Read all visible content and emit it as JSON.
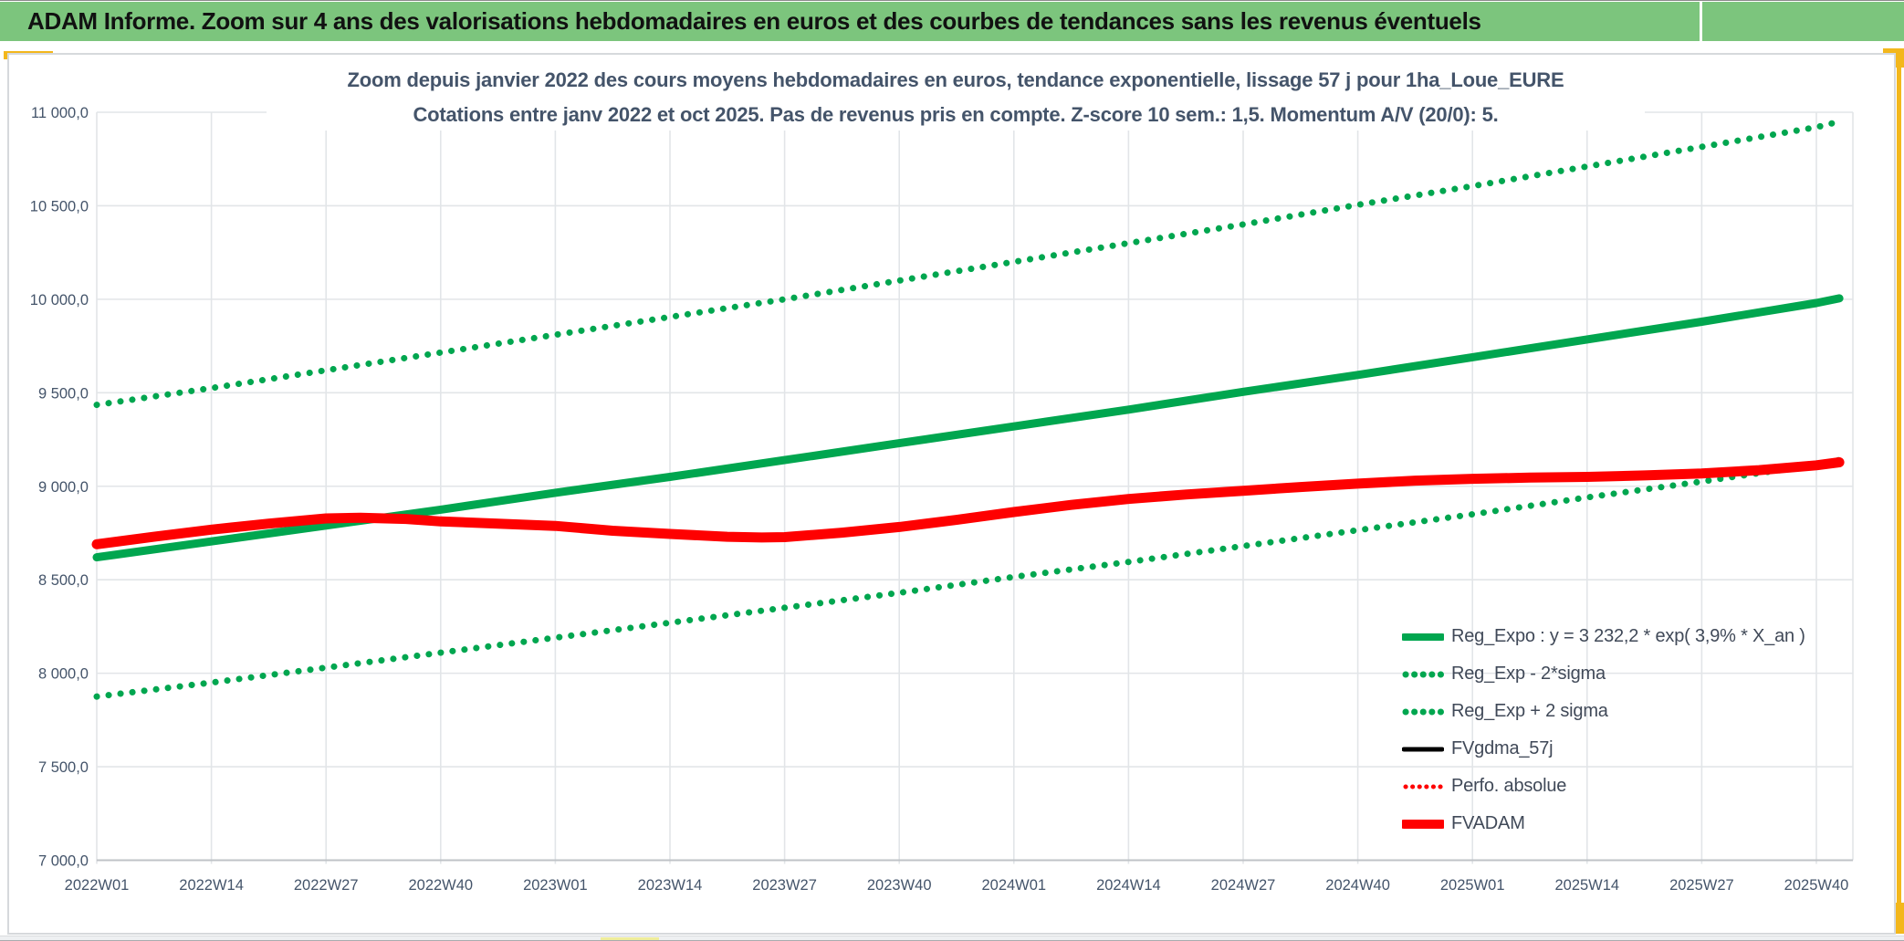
{
  "window": {
    "header_title": "ADAM Informe. Zoom sur 4 ans des valorisations hebdomadaires en euros et des courbes de tendances sans les revenus éventuels"
  },
  "colors": {
    "header_green": "#7cc57d",
    "accent_yellow": "#f3b71c",
    "pale_yellow_thumb": "#efed9b",
    "line_green": "#00a64f",
    "line_red": "#fe0000",
    "line_black": "#000000",
    "text_slate": "#44546a",
    "gridline": "#e2e5e8"
  },
  "chart_data": {
    "type": "line",
    "title_line1": "Zoom depuis janvier 2022 des cours moyens hebdomadaires en euros, tendance exponentielle, lissage 57 j pour 1ha_Loue_EURE",
    "title_line2": "Cotations entre janv 2022 et oct 2025. Pas de revenus pris en compte. Z-score 10 sem.: 1,5. Momentum A/V (20/0): 5.",
    "grid": true,
    "legend_position": "inside-bottom-right",
    "ylim": [
      7000,
      11000
    ],
    "y_ticks": [
      {
        "v": 11000,
        "label": "11 000,0"
      },
      {
        "v": 10500,
        "label": "10 500,0"
      },
      {
        "v": 10000,
        "label": "10 000,0"
      },
      {
        "v": 9500,
        "label": "9 500,0"
      },
      {
        "v": 9000,
        "label": "9 000,0"
      },
      {
        "v": 8500,
        "label": "8 500,0"
      },
      {
        "v": 8000,
        "label": "8 000,0"
      },
      {
        "v": 7500,
        "label": "7 500,0"
      },
      {
        "v": 7000,
        "label": "7 000,0"
      }
    ],
    "x_tick_labels": [
      "2022W01",
      "2022W14",
      "2022W27",
      "2022W40",
      "2023W01",
      "2023W14",
      "2023W27",
      "2023W40",
      "2024W01",
      "2024W14",
      "2024W27",
      "2024W40",
      "2025W01",
      "2025W14",
      "2025W27",
      "2025W40"
    ],
    "series": [
      {
        "key": "reg-expo",
        "name": "Reg_Expo : y = 3 232,2 * exp( 3,9% *  X_an )",
        "color": "#00a64f",
        "style": "solid",
        "width": 9,
        "points": [
          [
            0,
            8620
          ],
          [
            1,
            8705
          ],
          [
            2,
            8790
          ],
          [
            3,
            8875
          ],
          [
            4,
            8965
          ],
          [
            5,
            9050
          ],
          [
            6,
            9140
          ],
          [
            7,
            9230
          ],
          [
            8,
            9320
          ],
          [
            9,
            9410
          ],
          [
            10,
            9505
          ],
          [
            11,
            9595
          ],
          [
            12,
            9690
          ],
          [
            13,
            9785
          ],
          [
            14,
            9880
          ],
          [
            15,
            9980
          ],
          [
            15.2,
            10005
          ]
        ]
      },
      {
        "key": "reg-exp-minus-2sigma",
        "name": "Reg_Exp - 2*sigma",
        "color": "#00a64f",
        "style": "dotted",
        "width": 7,
        "points": [
          [
            0,
            7875
          ],
          [
            1,
            7950
          ],
          [
            2,
            8030
          ],
          [
            3,
            8110
          ],
          [
            4,
            8190
          ],
          [
            5,
            8270
          ],
          [
            6,
            8350
          ],
          [
            7,
            8430
          ],
          [
            8,
            8515
          ],
          [
            9,
            8595
          ],
          [
            10,
            8680
          ],
          [
            11,
            8765
          ],
          [
            12,
            8850
          ],
          [
            13,
            8940
          ],
          [
            14,
            9025
          ],
          [
            15,
            9115
          ],
          [
            15.2,
            9140
          ]
        ]
      },
      {
        "key": "reg-exp-plus-2sigma",
        "name": "Reg_Exp + 2 sigma",
        "color": "#00a64f",
        "style": "dotted",
        "width": 7,
        "points": [
          [
            0,
            9435
          ],
          [
            1,
            9525
          ],
          [
            2,
            9620
          ],
          [
            3,
            9715
          ],
          [
            4,
            9810
          ],
          [
            5,
            9905
          ],
          [
            6,
            10000
          ],
          [
            7,
            10100
          ],
          [
            8,
            10200
          ],
          [
            9,
            10300
          ],
          [
            10,
            10400
          ],
          [
            11,
            10505
          ],
          [
            12,
            10605
          ],
          [
            13,
            10710
          ],
          [
            14,
            10815
          ],
          [
            15,
            10920
          ],
          [
            15.2,
            10950
          ]
        ]
      },
      {
        "key": "fvgdma-57j",
        "name": "FVgdma_57j",
        "color": "#000000",
        "style": "solid",
        "width": 4.5,
        "points": [
          [
            0,
            8702
          ],
          [
            1,
            8762
          ],
          [
            2,
            8820
          ],
          [
            2.5,
            8828
          ],
          [
            3,
            8810
          ],
          [
            4,
            8784
          ],
          [
            5,
            8750
          ],
          [
            5.5,
            8740
          ],
          [
            6,
            8737
          ],
          [
            6.5,
            8758
          ],
          [
            7,
            8790
          ],
          [
            7.5,
            8826
          ],
          [
            8,
            8866
          ],
          [
            9,
            8934
          ],
          [
            10,
            8974
          ],
          [
            11,
            9010
          ],
          [
            12,
            9036
          ],
          [
            13,
            9048
          ],
          [
            14,
            9065
          ],
          [
            15,
            9106
          ],
          [
            15.2,
            9120
          ]
        ]
      },
      {
        "key": "perfo-absolue",
        "name": "Perfo. absolue",
        "color": "#fe0000",
        "style": "dotted",
        "width": 5,
        "points": [
          [
            0,
            8690
          ],
          [
            1,
            8768
          ],
          [
            2,
            8828
          ],
          [
            3,
            8812
          ],
          [
            4,
            8788
          ],
          [
            5,
            8745
          ],
          [
            6,
            8728
          ],
          [
            7,
            8782
          ],
          [
            8,
            8862
          ],
          [
            9,
            8932
          ],
          [
            10,
            8976
          ],
          [
            11,
            9014
          ],
          [
            12,
            9040
          ],
          [
            13,
            9050
          ],
          [
            14,
            9068
          ],
          [
            15,
            9112
          ],
          [
            15.2,
            9128
          ]
        ]
      },
      {
        "key": "fvadam",
        "name": "FVADAM",
        "color": "#fe0000",
        "style": "solid",
        "width": 11,
        "points": [
          [
            0,
            8690
          ],
          [
            0.5,
            8730
          ],
          [
            1,
            8768
          ],
          [
            1.5,
            8800
          ],
          [
            2,
            8828
          ],
          [
            2.3,
            8832
          ],
          [
            2.7,
            8825
          ],
          [
            3,
            8812
          ],
          [
            3.5,
            8800
          ],
          [
            4,
            8788
          ],
          [
            4.5,
            8762
          ],
          [
            5,
            8745
          ],
          [
            5.5,
            8730
          ],
          [
            5.8,
            8726
          ],
          [
            6,
            8728
          ],
          [
            6.5,
            8752
          ],
          [
            7,
            8782
          ],
          [
            7.5,
            8820
          ],
          [
            8,
            8862
          ],
          [
            8.5,
            8900
          ],
          [
            9,
            8932
          ],
          [
            9.5,
            8956
          ],
          [
            10,
            8976
          ],
          [
            10.5,
            8996
          ],
          [
            11,
            9014
          ],
          [
            11.5,
            9030
          ],
          [
            12,
            9040
          ],
          [
            12.5,
            9046
          ],
          [
            13,
            9050
          ],
          [
            13.5,
            9058
          ],
          [
            14,
            9068
          ],
          [
            14.5,
            9086
          ],
          [
            15,
            9112
          ],
          [
            15.2,
            9128
          ]
        ]
      }
    ]
  }
}
